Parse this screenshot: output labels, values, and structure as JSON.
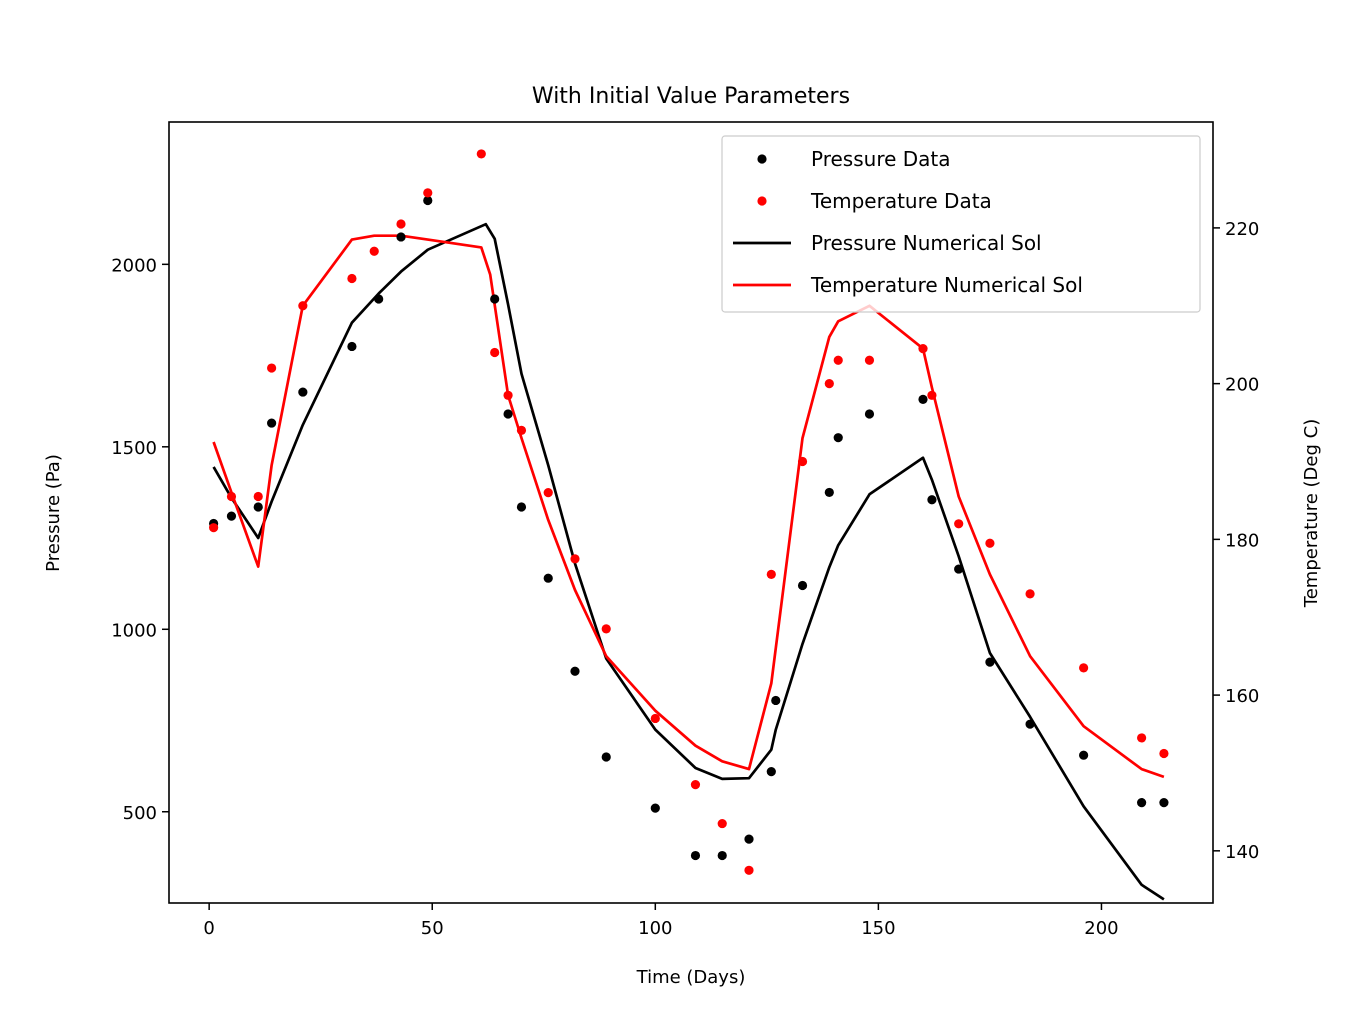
{
  "chart_data": {
    "type": "scatter",
    "title": "With Initial Value Parameters",
    "xlabel": "Time (Days)",
    "ylabel": "Pressure (Pa)",
    "y2label": "Temperature (Deg C)",
    "xlim": [
      -9,
      225
    ],
    "ylim": [
      250,
      2390
    ],
    "y2lim": [
      133.3,
      233.6
    ],
    "xticks": [
      0,
      50,
      100,
      150,
      200
    ],
    "yticks": [
      500,
      1000,
      1500,
      2000
    ],
    "y2ticks": [
      140,
      160,
      180,
      200,
      220
    ],
    "legend_position": "top-right",
    "colors": {
      "pressure": "#000000",
      "temperature": "#ff0000"
    },
    "series": [
      {
        "name": "Pressure Data",
        "kind": "points",
        "axis": "left",
        "color": "#000000",
        "x": [
          1,
          5,
          11,
          14,
          21,
          32,
          38,
          43,
          49,
          64,
          67,
          70,
          76,
          82,
          89,
          100,
          109,
          115,
          121,
          126,
          127,
          133,
          139,
          141,
          148,
          160,
          162,
          168,
          175,
          184,
          196,
          209,
          214
        ],
        "y": [
          1290,
          1310,
          1335,
          1565,
          1650,
          1775,
          1905,
          2075,
          2175,
          1905,
          1590,
          1335,
          1140,
          885,
          650,
          510,
          380,
          380,
          425,
          610,
          805,
          1120,
          1375,
          1525,
          1590,
          1630,
          1355,
          1165,
          910,
          740,
          655,
          525,
          525
        ]
      },
      {
        "name": "Temperature Data",
        "kind": "points",
        "axis": "right",
        "color": "#ff0000",
        "x": [
          1,
          5,
          11,
          14,
          21,
          32,
          37,
          43,
          49,
          61,
          64,
          67,
          70,
          76,
          82,
          89,
          100,
          109,
          115,
          121,
          126,
          133,
          139,
          141,
          148,
          160,
          162,
          168,
          175,
          184,
          196,
          209,
          214
        ],
        "y": [
          181.5,
          185.5,
          185.5,
          202,
          210,
          213.5,
          217,
          220.5,
          224.5,
          229.5,
          204,
          198.5,
          194,
          186,
          177.5,
          168.5,
          157,
          148.5,
          143.5,
          137.5,
          175.5,
          190,
          200,
          203,
          203,
          204.5,
          198.5,
          182,
          179.5,
          173,
          163.5,
          154.5,
          152.5
        ]
      },
      {
        "name": "Pressure Numerical Sol",
        "kind": "line",
        "axis": "left",
        "color": "#000000",
        "x": [
          1,
          5,
          11,
          14,
          21,
          32,
          38,
          43,
          49,
          62,
          64,
          67,
          70,
          76,
          82,
          89,
          100,
          109,
          115,
          121,
          126,
          127,
          133,
          139,
          141,
          148,
          160,
          162,
          168,
          175,
          184,
          196,
          209,
          214
        ],
        "y": [
          1445,
          1360,
          1250,
          1350,
          1560,
          1840,
          1920,
          1980,
          2040,
          2110,
          2070,
          1890,
          1700,
          1450,
          1180,
          920,
          725,
          620,
          590,
          592,
          670,
          725,
          960,
          1170,
          1230,
          1370,
          1470,
          1410,
          1200,
          935,
          760,
          515,
          300,
          260
        ]
      },
      {
        "name": "Temperature Numerical Sol",
        "kind": "line",
        "axis": "right",
        "color": "#ff0000",
        "x": [
          1,
          5,
          11,
          14,
          21,
          32,
          37,
          43,
          49,
          61,
          63,
          67,
          70,
          76,
          82,
          89,
          100,
          109,
          115,
          121,
          126,
          133,
          139,
          141,
          148,
          160,
          162,
          168,
          175,
          184,
          196,
          209,
          214
        ],
        "y": [
          192.5,
          186,
          176.5,
          189.5,
          210,
          218.5,
          219,
          219,
          218.5,
          217.5,
          214,
          198.5,
          193,
          182.5,
          173.5,
          165,
          158,
          153.5,
          151.5,
          150.5,
          161.5,
          193,
          206,
          208,
          210,
          204.5,
          199.5,
          185.5,
          175.5,
          165,
          156,
          150.5,
          149.5
        ]
      }
    ]
  }
}
